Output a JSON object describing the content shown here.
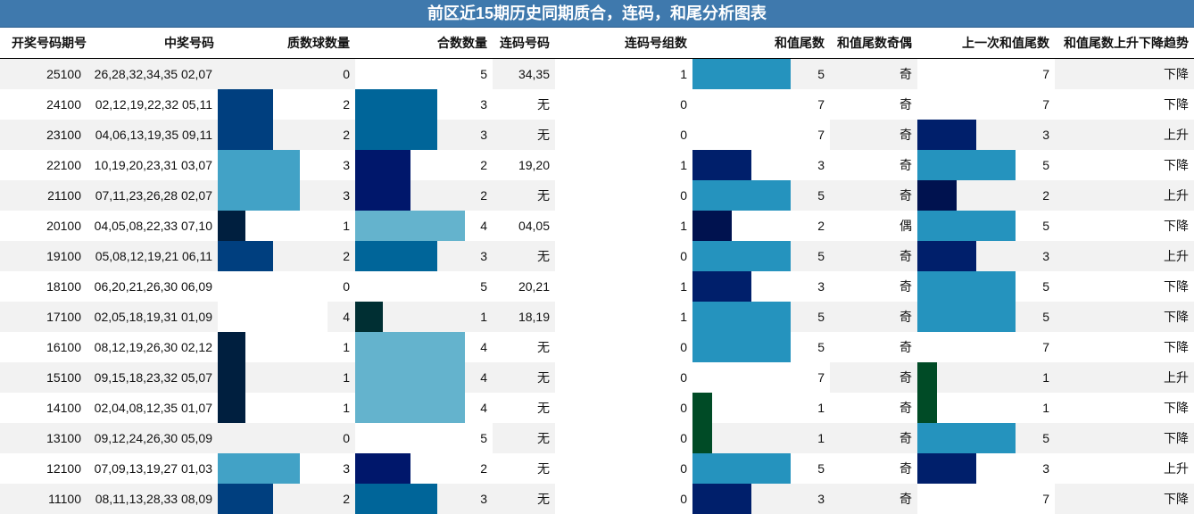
{
  "title": "前区近15期历史同期质合，连码，和尾分析图表",
  "headers": [
    "开奖号码期号",
    "中奖号码",
    "质数球数量",
    "合数数量",
    "连码号码",
    "连码号组数",
    "和值尾数",
    "和值尾数奇偶",
    "上一次和值尾数",
    "和值尾数上升下降趋势"
  ],
  "colors": {
    "prime_count": {
      "0": "#ffffff",
      "1": "#001f3f",
      "2": "#003f7f",
      "3": "#42a2c6",
      "4": "#ffffff"
    },
    "composite_count": {
      "1": "#002f33",
      "2": "#00176b",
      "3": "#006599",
      "4": "#64b3cd",
      "5": "#ffffff"
    },
    "tail": {
      "1": "#004b26",
      "2": "#00124f",
      "3": "#001f6b",
      "5": "#2593be",
      "7": "#ffffff"
    },
    "stripe": "#f2f2f2"
  },
  "rows": [
    {
      "period": "25100",
      "numbers": "26,28,32,34,35 02,07",
      "primes": 0,
      "composites": 5,
      "consec": "34,35",
      "groups": 1,
      "tail": 5,
      "parity": "奇",
      "prev_tail": 7,
      "trend": "下降"
    },
    {
      "period": "24100",
      "numbers": "02,12,19,22,32 05,11",
      "primes": 2,
      "composites": 3,
      "consec": "无",
      "groups": 0,
      "tail": 7,
      "parity": "奇",
      "prev_tail": 7,
      "trend": "下降"
    },
    {
      "period": "23100",
      "numbers": "04,06,13,19,35 09,11",
      "primes": 2,
      "composites": 3,
      "consec": "无",
      "groups": 0,
      "tail": 7,
      "parity": "奇",
      "prev_tail": 3,
      "trend": "上升"
    },
    {
      "period": "22100",
      "numbers": "10,19,20,23,31 03,07",
      "primes": 3,
      "composites": 2,
      "consec": "19,20",
      "groups": 1,
      "tail": 3,
      "parity": "奇",
      "prev_tail": 5,
      "trend": "下降"
    },
    {
      "period": "21100",
      "numbers": "07,11,23,26,28 02,07",
      "primes": 3,
      "composites": 2,
      "consec": "无",
      "groups": 0,
      "tail": 5,
      "parity": "奇",
      "prev_tail": 2,
      "trend": "上升"
    },
    {
      "period": "20100",
      "numbers": "04,05,08,22,33 07,10",
      "primes": 1,
      "composites": 4,
      "consec": "04,05",
      "groups": 1,
      "tail": 2,
      "parity": "偶",
      "prev_tail": 5,
      "trend": "下降"
    },
    {
      "period": "19100",
      "numbers": "05,08,12,19,21 06,11",
      "primes": 2,
      "composites": 3,
      "consec": "无",
      "groups": 0,
      "tail": 5,
      "parity": "奇",
      "prev_tail": 3,
      "trend": "上升"
    },
    {
      "period": "18100",
      "numbers": "06,20,21,26,30 06,09",
      "primes": 0,
      "composites": 5,
      "consec": "20,21",
      "groups": 1,
      "tail": 3,
      "parity": "奇",
      "prev_tail": 5,
      "trend": "下降"
    },
    {
      "period": "17100",
      "numbers": "02,05,18,19,31 01,09",
      "primes": 4,
      "composites": 1,
      "consec": "18,19",
      "groups": 1,
      "tail": 5,
      "parity": "奇",
      "prev_tail": 5,
      "trend": "下降"
    },
    {
      "period": "16100",
      "numbers": "08,12,19,26,30 02,12",
      "primes": 1,
      "composites": 4,
      "consec": "无",
      "groups": 0,
      "tail": 5,
      "parity": "奇",
      "prev_tail": 7,
      "trend": "下降"
    },
    {
      "period": "15100",
      "numbers": "09,15,18,23,32 05,07",
      "primes": 1,
      "composites": 4,
      "consec": "无",
      "groups": 0,
      "tail": 7,
      "parity": "奇",
      "prev_tail": 1,
      "trend": "上升"
    },
    {
      "period": "14100",
      "numbers": "02,04,08,12,35 01,07",
      "primes": 1,
      "composites": 4,
      "consec": "无",
      "groups": 0,
      "tail": 1,
      "parity": "奇",
      "prev_tail": 1,
      "trend": "下降"
    },
    {
      "period": "13100",
      "numbers": "09,12,24,26,30 05,09",
      "primes": 0,
      "composites": 5,
      "consec": "无",
      "groups": 0,
      "tail": 1,
      "parity": "奇",
      "prev_tail": 5,
      "trend": "下降"
    },
    {
      "period": "12100",
      "numbers": "07,09,13,19,27 01,03",
      "primes": 3,
      "composites": 2,
      "consec": "无",
      "groups": 0,
      "tail": 5,
      "parity": "奇",
      "prev_tail": 3,
      "trend": "上升"
    },
    {
      "period": "11100",
      "numbers": "08,11,13,28,33 08,09",
      "primes": 2,
      "composites": 3,
      "consec": "无",
      "groups": 0,
      "tail": 3,
      "parity": "奇",
      "prev_tail": 7,
      "trend": "下降"
    }
  ]
}
